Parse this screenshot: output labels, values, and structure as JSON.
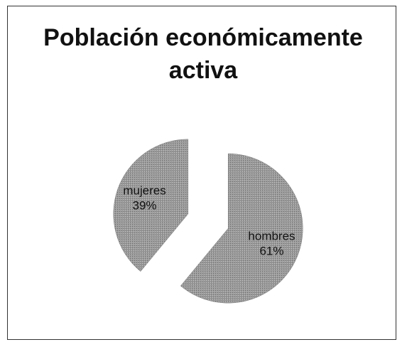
{
  "chart_data": {
    "type": "pie",
    "title": "Población económicamente activa",
    "categories": [
      "hombres",
      "mujeres"
    ],
    "values": [
      61,
      39
    ],
    "value_labels": [
      "61%",
      "39%"
    ],
    "color": "#9a9a9a"
  }
}
